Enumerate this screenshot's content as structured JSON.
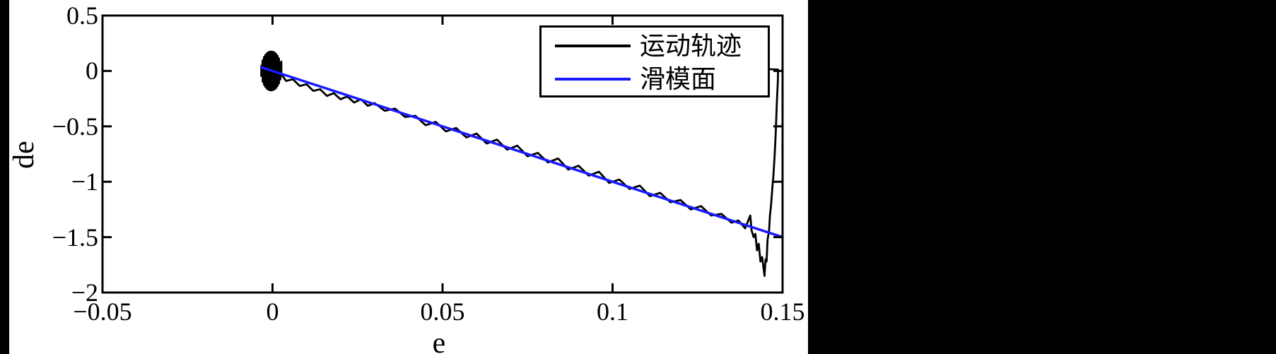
{
  "figure": {
    "bg_color": "#ffffff",
    "side_bar_color": "#000000",
    "axis_color": "#000000",
    "accent_blue": "#1a1aff"
  },
  "chart_data": {
    "type": "line",
    "title": "",
    "xlabel": "e",
    "ylabel": "de",
    "xlim": [
      -0.05,
      0.15
    ],
    "ylim": [
      -2,
      0.5
    ],
    "grid": false,
    "box": true,
    "ticks_mirrored": true,
    "x_ticks": [
      -0.05,
      0,
      0.05,
      0.1,
      0.15
    ],
    "x_tick_labels": [
      "−0.05",
      "0",
      "0.05",
      "0.1",
      "0.15"
    ],
    "y_ticks": [
      0.5,
      0,
      -0.5,
      -1,
      -1.5,
      -2
    ],
    "y_tick_labels": [
      "0.5",
      "0",
      "−0.5",
      "−1",
      "−1.5",
      "−2"
    ],
    "legend": {
      "position": "upper-right",
      "entries": [
        {
          "label": "运动轨迹",
          "color": "#000000"
        },
        {
          "label": "滑模面",
          "color": "#1a1aff"
        }
      ]
    },
    "series": [
      {
        "name": "运动轨迹",
        "color": "#000000",
        "line_width": 2.8,
        "points": [
          [
            -0.0033,
            0.045
          ],
          [
            -0.0033,
            -0.045
          ],
          [
            -0.0029,
            0.097
          ],
          [
            -0.0029,
            -0.097
          ],
          [
            -0.0025,
            0.125
          ],
          [
            -0.0025,
            -0.125
          ],
          [
            -0.0021,
            0.144
          ],
          [
            -0.0021,
            -0.144
          ],
          [
            -0.0017,
            0.158
          ],
          [
            -0.0017,
            -0.158
          ],
          [
            -0.0013,
            0.167
          ],
          [
            -0.0013,
            -0.167
          ],
          [
            -0.0009,
            0.173
          ],
          [
            -0.0009,
            -0.173
          ],
          [
            -0.0005,
            0.175
          ],
          [
            -0.0005,
            -0.175
          ],
          [
            -0.0001,
            0.174
          ],
          [
            -0.0001,
            -0.174
          ],
          [
            0.0003,
            0.17
          ],
          [
            0.0003,
            -0.17
          ],
          [
            0.0007,
            0.163
          ],
          [
            0.0007,
            -0.163
          ],
          [
            0.0011,
            0.152
          ],
          [
            0.0011,
            -0.152
          ],
          [
            0.0015,
            0.135
          ],
          [
            0.0015,
            -0.135
          ],
          [
            0.0019,
            0.112
          ],
          [
            0.0019,
            -0.112
          ],
          [
            0.0023,
            0.076
          ],
          [
            0.0023,
            -0.076
          ],
          [
            0.0026,
            0.085
          ],
          [
            0.0026,
            -0.03
          ],
          [
            0.004,
            -0.09
          ],
          [
            0.006,
            -0.075
          ],
          [
            0.008,
            -0.135
          ],
          [
            0.01,
            -0.12
          ],
          [
            0.012,
            -0.18
          ],
          [
            0.014,
            -0.165
          ],
          [
            0.016,
            -0.225
          ],
          [
            0.018,
            -0.2
          ],
          [
            0.02,
            -0.255
          ],
          [
            0.022,
            -0.23
          ],
          [
            0.024,
            -0.285
          ],
          [
            0.026,
            -0.255
          ],
          [
            0.028,
            -0.315
          ],
          [
            0.03,
            -0.29
          ],
          [
            0.033,
            -0.36
          ],
          [
            0.036,
            -0.34
          ],
          [
            0.039,
            -0.415
          ],
          [
            0.042,
            -0.405
          ],
          [
            0.045,
            -0.49
          ],
          [
            0.048,
            -0.46
          ],
          [
            0.051,
            -0.545
          ],
          [
            0.054,
            -0.515
          ],
          [
            0.057,
            -0.6
          ],
          [
            0.06,
            -0.565
          ],
          [
            0.063,
            -0.655
          ],
          [
            0.066,
            -0.62
          ],
          [
            0.069,
            -0.71
          ],
          [
            0.072,
            -0.675
          ],
          [
            0.075,
            -0.77
          ],
          [
            0.078,
            -0.74
          ],
          [
            0.081,
            -0.825
          ],
          [
            0.084,
            -0.79
          ],
          [
            0.087,
            -0.89
          ],
          [
            0.09,
            -0.855
          ],
          [
            0.093,
            -0.945
          ],
          [
            0.096,
            -0.91
          ],
          [
            0.099,
            -1.01
          ],
          [
            0.102,
            -0.98
          ],
          [
            0.105,
            -1.065
          ],
          [
            0.108,
            -1.035
          ],
          [
            0.111,
            -1.13
          ],
          [
            0.114,
            -1.1
          ],
          [
            0.117,
            -1.185
          ],
          [
            0.12,
            -1.165
          ],
          [
            0.123,
            -1.25
          ],
          [
            0.126,
            -1.22
          ],
          [
            0.129,
            -1.305
          ],
          [
            0.132,
            -1.29
          ],
          [
            0.135,
            -1.37
          ],
          [
            0.137,
            -1.35
          ],
          [
            0.139,
            -1.42
          ],
          [
            0.1405,
            -1.305
          ],
          [
            0.1409,
            -1.44
          ],
          [
            0.1415,
            -1.5
          ],
          [
            0.142,
            -1.47
          ],
          [
            0.1425,
            -1.62
          ],
          [
            0.143,
            -1.56
          ],
          [
            0.1435,
            -1.72
          ],
          [
            0.144,
            -1.68
          ],
          [
            0.1447,
            -1.85
          ],
          [
            0.145,
            -1.7
          ],
          [
            0.1453,
            -1.72
          ],
          [
            0.1456,
            -1.52
          ],
          [
            0.146,
            -1.45
          ],
          [
            0.1463,
            -1.3
          ],
          [
            0.1466,
            -1.22
          ],
          [
            0.147,
            -1.05
          ],
          [
            0.1473,
            -0.95
          ],
          [
            0.1477,
            -0.75
          ],
          [
            0.148,
            -0.55
          ],
          [
            0.1483,
            -0.3
          ],
          [
            0.1486,
            -0.1
          ],
          [
            0.1487,
            0.012
          ],
          [
            0.1463,
            0.015
          ]
        ]
      },
      {
        "name": "滑模面",
        "color": "#1a1aff",
        "line_width": 3.5,
        "points": [
          [
            -0.0033,
            0.033
          ],
          [
            0.15,
            -1.5
          ]
        ]
      }
    ]
  }
}
